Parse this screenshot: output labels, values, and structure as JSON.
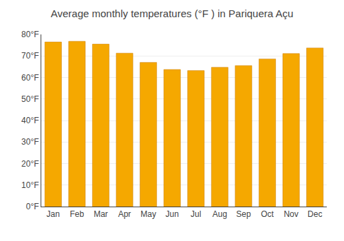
{
  "chart_data": {
    "type": "bar",
    "title": "Average monthly temperatures (°F ) in Pariquera Açu",
    "categories": [
      "Jan",
      "Feb",
      "Mar",
      "Apr",
      "May",
      "Jun",
      "Jul",
      "Aug",
      "Sep",
      "Oct",
      "Nov",
      "Dec"
    ],
    "values": [
      76.5,
      76.8,
      75.5,
      71.3,
      67.0,
      63.7,
      63.2,
      64.7,
      65.5,
      68.6,
      71.1,
      73.7
    ],
    "color": "#F5A800",
    "ylim": [
      0,
      80
    ],
    "yticks": [
      {
        "value": 0,
        "label": "0°F"
      },
      {
        "value": 10,
        "label": "10°F"
      },
      {
        "value": 20,
        "label": "20°F"
      },
      {
        "value": 30,
        "label": "30°F"
      },
      {
        "value": 40,
        "label": "40°F"
      },
      {
        "value": 50,
        "label": "50°F"
      },
      {
        "value": 60,
        "label": "60°F"
      },
      {
        "value": 70,
        "label": "70°F"
      },
      {
        "value": 80,
        "label": "80°F"
      }
    ],
    "grid": true
  }
}
